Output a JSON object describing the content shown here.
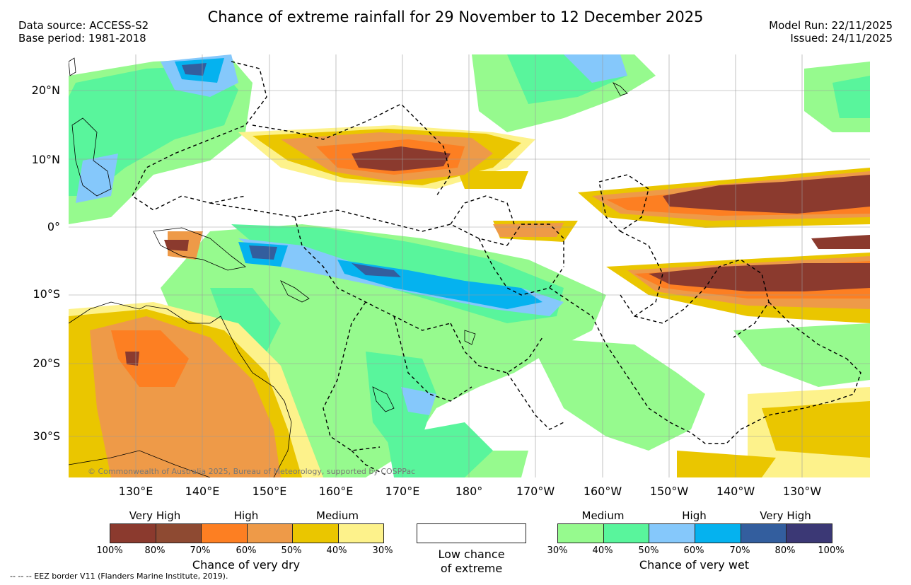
{
  "header": {
    "title": "Chance of extreme rainfall for 29 November to 12 December 2025",
    "data_source": "Data source: ACCESS-S2",
    "base_period": "Base period: 1981-2018",
    "model_run": "Model Run: 22/11/2025",
    "issued": "Issued: 24/11/2025"
  },
  "map": {
    "lat_labels": [
      "20°N",
      "10°N",
      "0°",
      "10°S",
      "20°S",
      "30°S"
    ],
    "lon_labels": [
      "130°E",
      "140°E",
      "150°E",
      "160°E",
      "170°E",
      "180°",
      "170°W",
      "160°W",
      "150°W",
      "140°W",
      "130°W"
    ],
    "copyright": "© Commonwealth of Australia 2025, Bureau of Meteorology, supported by COSPPac"
  },
  "legend": {
    "dry": {
      "categories": [
        "Very High",
        "High",
        "Medium"
      ],
      "ticks": [
        "100%",
        "80%",
        "70%",
        "60%",
        "50%",
        "40%",
        "30%"
      ],
      "colors": [
        "#8b3a2e",
        "#8e4a32",
        "#fd7f22",
        "#ee9a48",
        "#eac600",
        "#fdf28b"
      ],
      "label": "Chance of very dry"
    },
    "low": {
      "label_line1": "Low chance",
      "label_line2": "of extreme"
    },
    "wet": {
      "categories": [
        "Medium",
        "High",
        "Very High"
      ],
      "ticks": [
        "30%",
        "40%",
        "50%",
        "60%",
        "70%",
        "80%",
        "100%"
      ],
      "colors": [
        "#96fa8e",
        "#59f59c",
        "#85c8fb",
        "#05b2ef",
        "#335e9e",
        "#3b3875"
      ],
      "label": "Chance of very wet"
    }
  },
  "footer": "--  --  -- EEZ border V11 (Flanders Marine Institute, 2019)."
}
